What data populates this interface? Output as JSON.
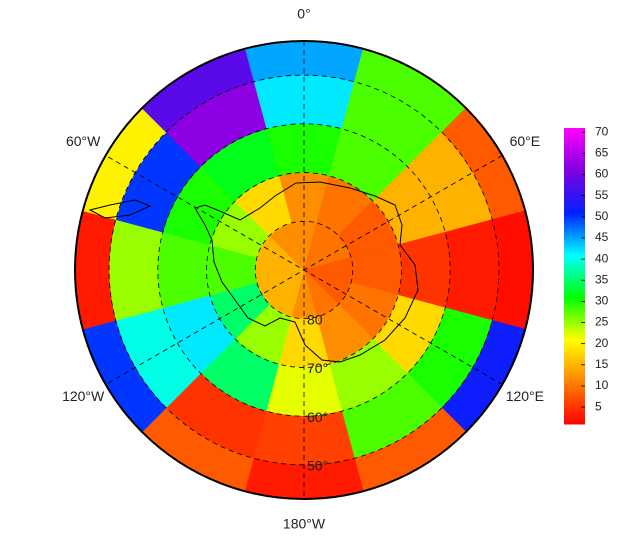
{
  "chart_data": {
    "type": "polar_heatmap",
    "latlim": [
      -90,
      -43
    ],
    "lat_edges": [
      -90,
      -80,
      -70,
      -60,
      -50,
      -43
    ],
    "lon_edges": [
      -15,
      15,
      45,
      75,
      105,
      135,
      165,
      195,
      225,
      255,
      285,
      315,
      345
    ],
    "values": [
      [
        12,
        10,
        10,
        8,
        8,
        10,
        12,
        15,
        15,
        15,
        15,
        12
      ],
      [
        12,
        10,
        8,
        8,
        10,
        12,
        18,
        25,
        35,
        28,
        25,
        18
      ],
      [
        30,
        28,
        15,
        5,
        18,
        25,
        22,
        35,
        42,
        28,
        30,
        32
      ],
      [
        42,
        28,
        15,
        3,
        30,
        28,
        6,
        5,
        40,
        25,
        50,
        62
      ],
      [
        45,
        28,
        8,
        2,
        52,
        8,
        3,
        8,
        50,
        3,
        20,
        58
      ]
    ],
    "lonticks": [
      {
        "value": 0,
        "label": "0°"
      },
      {
        "value": 60,
        "label": "60°E"
      },
      {
        "value": 120,
        "label": "120°E"
      },
      {
        "value": 180,
        "label": "180°W"
      },
      {
        "value": 240,
        "label": "120°W"
      },
      {
        "value": 300,
        "label": "60°W"
      }
    ],
    "latticks": [
      {
        "value": -80,
        "label": "80"
      },
      {
        "value": -70,
        "label": "70°"
      },
      {
        "value": -60,
        "label": "60°"
      },
      {
        "value": -50,
        "label": "50°"
      }
    ],
    "clim": [
      1,
      71
    ],
    "cticks": [
      5,
      10,
      15,
      20,
      25,
      30,
      35,
      40,
      45,
      50,
      55,
      60,
      65,
      70
    ],
    "colormap": [
      "#ff0000",
      "#ff8000",
      "#ffff00",
      "#00ff00",
      "#00ffff",
      "#0020ff",
      "#8000e0",
      "#ff00ff"
    ]
  }
}
